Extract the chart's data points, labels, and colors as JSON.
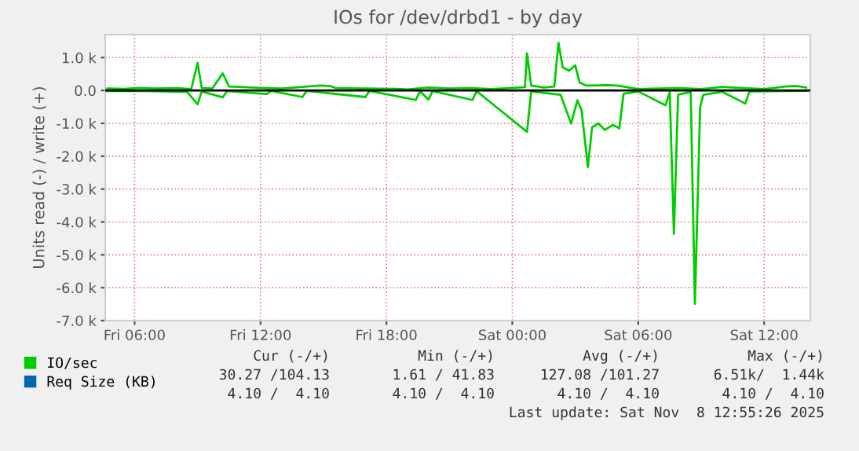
{
  "chart_data": {
    "type": "line",
    "title": "IOs for /dev/drbd1 - by day",
    "ylabel": "Units read (-) / write (+)",
    "xlim": [
      "2025-11-07T04:36",
      "2025-11-08T14:12"
    ],
    "ylim": [
      -7000,
      1700
    ],
    "xticks": [
      {
        "value": "2025-11-07T06:00",
        "label": "Fri 06:00"
      },
      {
        "value": "2025-11-07T12:00",
        "label": "Fri 12:00"
      },
      {
        "value": "2025-11-07T18:00",
        "label": "Fri 18:00"
      },
      {
        "value": "2025-11-08T00:00",
        "label": "Sat 00:00"
      },
      {
        "value": "2025-11-08T06:00",
        "label": "Sat 06:00"
      },
      {
        "value": "2025-11-08T12:00",
        "label": "Sat 12:00"
      }
    ],
    "yticks": [
      {
        "value": 1000,
        "label": "1.0 k"
      },
      {
        "value": 0,
        "label": "0.0"
      },
      {
        "value": -1000,
        "label": "-1.0 k"
      },
      {
        "value": -2000,
        "label": "-2.0 k"
      },
      {
        "value": -3000,
        "label": "-3.0 k"
      },
      {
        "value": -4000,
        "label": "-4.0 k"
      },
      {
        "value": -5000,
        "label": "-5.0 k"
      },
      {
        "value": -6000,
        "label": "-6.0 k"
      },
      {
        "value": -7000,
        "label": "-7.0 k"
      }
    ],
    "grid": true,
    "legend": "bottom",
    "marker": "none",
    "line_style": "solid",
    "ref_lines": [
      {
        "axis": "y",
        "value": 0,
        "color": "#000000"
      }
    ],
    "series": [
      {
        "name": "IO/sec",
        "color": "#00cc00",
        "x": [
          "2025-11-07T04:42",
          "2025-11-07T05:30",
          "2025-11-07T06:12",
          "2025-11-07T07:00",
          "2025-11-07T08:00",
          "2025-11-07T08:42",
          "2025-11-07T09:00",
          "2025-11-07T09:12",
          "2025-11-07T09:42",
          "2025-11-07T10:12",
          "2025-11-07T10:30",
          "2025-11-07T11:00",
          "2025-11-07T12:00",
          "2025-11-07T13:00",
          "2025-11-07T14:00",
          "2025-11-07T14:48",
          "2025-11-07T15:18",
          "2025-11-07T15:36",
          "2025-11-07T17:00",
          "2025-11-07T18:30",
          "2025-11-07T19:00",
          "2025-11-07T20:00",
          "2025-11-07T21:00",
          "2025-11-07T22:00",
          "2025-11-07T23:00",
          "2025-11-08T00:00",
          "2025-11-08T00:36",
          "2025-11-08T00:42",
          "2025-11-08T00:54",
          "2025-11-08T01:30",
          "2025-11-08T02:00",
          "2025-11-08T02:12",
          "2025-11-08T02:24",
          "2025-11-08T02:42",
          "2025-11-08T03:00",
          "2025-11-08T03:12",
          "2025-11-08T03:30",
          "2025-11-08T04:30",
          "2025-11-08T05:00",
          "2025-11-08T06:00",
          "2025-11-08T07:00",
          "2025-11-08T08:00",
          "2025-11-08T09:00",
          "2025-11-08T10:00",
          "2025-11-08T11:00",
          "2025-11-08T12:00",
          "2025-11-08T13:00",
          "2025-11-08T13:30",
          "2025-11-08T14:00"
        ],
        "values": [
          60,
          50,
          80,
          60,
          70,
          40,
          840,
          80,
          60,
          520,
          120,
          110,
          80,
          60,
          110,
          150,
          140,
          70,
          60,
          50,
          30,
          90,
          60,
          70,
          40,
          80,
          100,
          1130,
          150,
          90,
          120,
          1450,
          700,
          600,
          760,
          250,
          150,
          160,
          150,
          40,
          60,
          70,
          40,
          110,
          70,
          40,
          120,
          140,
          90
        ]
      },
      {
        "color": "#00cc00",
        "x": [
          "2025-11-07T04:42",
          "2025-11-07T06:00",
          "2025-11-07T08:30",
          "2025-11-07T09:00",
          "2025-11-07T09:12",
          "2025-11-07T10:12",
          "2025-11-07T10:24",
          "2025-11-07T12:18",
          "2025-11-07T12:30",
          "2025-11-07T14:00",
          "2025-11-07T14:12",
          "2025-11-07T17:00",
          "2025-11-07T17:12",
          "2025-11-07T19:24",
          "2025-11-07T19:36",
          "2025-11-07T20:00",
          "2025-11-07T20:12",
          "2025-11-07T22:06",
          "2025-11-07T22:18",
          "2025-11-08T00:42",
          "2025-11-08T00:54",
          "2025-11-08T02:18",
          "2025-11-08T02:48",
          "2025-11-08T03:06",
          "2025-11-08T03:18",
          "2025-11-08T03:36",
          "2025-11-08T03:48",
          "2025-11-08T04:06",
          "2025-11-08T04:24",
          "2025-11-08T04:48",
          "2025-11-08T05:06",
          "2025-11-08T05:18",
          "2025-11-08T06:00",
          "2025-11-08T07:18",
          "2025-11-08T07:30",
          "2025-11-08T07:42",
          "2025-11-08T07:54",
          "2025-11-08T08:30",
          "2025-11-08T08:42",
          "2025-11-08T08:57",
          "2025-11-08T09:06",
          "2025-11-08T10:00",
          "2025-11-08T11:06",
          "2025-11-08T11:18",
          "2025-11-08T13:00",
          "2025-11-08T14:00"
        ],
        "values": [
          -20,
          -10,
          -40,
          -420,
          -30,
          -210,
          -20,
          -110,
          -10,
          -200,
          -10,
          -200,
          -10,
          -290,
          -20,
          -280,
          -20,
          -290,
          -20,
          -1260,
          -30,
          -130,
          -1010,
          -300,
          -600,
          -2330,
          -1120,
          -1000,
          -1200,
          -1050,
          -1150,
          -100,
          -30,
          -450,
          -50,
          -4360,
          -130,
          -40,
          -6490,
          -500,
          -130,
          -40,
          -400,
          -30,
          -20,
          -10
        ]
      },
      {
        "name": "Req Size (KB)",
        "color": "#0066b3"
      }
    ],
    "annotations": [
      "Cur (-/+)",
      "Min (-/+)",
      "Avg (-/+)",
      "Max (-/+)",
      "30.27 /104.13",
      "1.61 / 41.83",
      "127.08 /101.27",
      "6.51k/  1.44k",
      "4.10 /  4.10",
      "4.10 /  4.10",
      "4.10 /  4.10",
      "4.10 /  4.10",
      "Last update: Sat Nov  8 12:55:26 2025"
    ]
  }
}
